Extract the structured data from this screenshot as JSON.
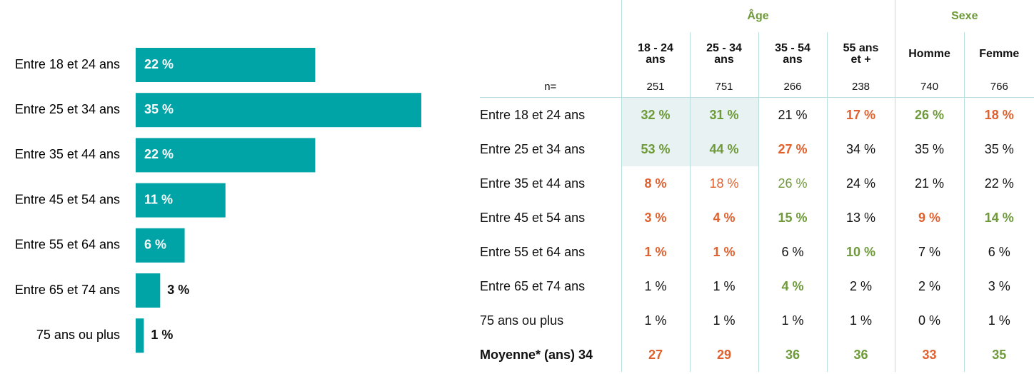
{
  "chart_data": {
    "type": "bar",
    "orientation": "horizontal",
    "categories": [
      "Entre 18 et 24 ans",
      "Entre 25 et 34 ans",
      "Entre 35 et 44 ans",
      "Entre 45 et 54 ans",
      "Entre 55 et 64 ans",
      "Entre 65 et 74 ans",
      "75 ans ou plus"
    ],
    "values": [
      22,
      35,
      22,
      11,
      6,
      3,
      1
    ],
    "value_labels": [
      "22 %",
      "35 %",
      "22 %",
      "11 %",
      "6 %",
      "3 %",
      "1 %"
    ],
    "color": "#00a3a6"
  },
  "table": {
    "group_headers": [
      "Âge",
      "Sexe"
    ],
    "columns": [
      "18 - 24\nans",
      "25 - 34\nans",
      "35 - 54\nans",
      "55 ans\net +",
      "Homme",
      "Femme"
    ],
    "n_row": [
      "n=",
      "251",
      "751",
      "266",
      "238",
      "740",
      "766"
    ],
    "rows": [
      [
        "Entre 18 et 24 ans",
        "32 %",
        "31 %",
        "21 %",
        "17 %",
        "26 %",
        "18 %"
      ],
      [
        "Entre 25 et 34 ans",
        "53 %",
        "44 %",
        "27 %",
        "34 %",
        "35 %",
        "35 %"
      ],
      [
        "Entre 35 et 44 ans",
        "8 %",
        "18 %",
        "26 %",
        "24 %",
        "21 %",
        "22 %"
      ],
      [
        "Entre 45 et 54 ans",
        "3 %",
        "4 %",
        "15 %",
        "13 %",
        "9 %",
        "14 %"
      ],
      [
        "Entre 55 et 64 ans",
        "1 %",
        "1 %",
        "6 %",
        "10 %",
        "7 %",
        "6 %"
      ],
      [
        "Entre 65 et 74 ans",
        "1 %",
        "1 %",
        "4 %",
        "2 %",
        "2 %",
        "3 %"
      ],
      [
        "75 ans ou plus",
        "1 %",
        "1 %",
        "1 %",
        "1 %",
        "0 %",
        "1 %"
      ],
      [
        "Moyenne* (ans) 34",
        "27",
        "29",
        "36",
        "36",
        "33",
        "35"
      ]
    ]
  }
}
